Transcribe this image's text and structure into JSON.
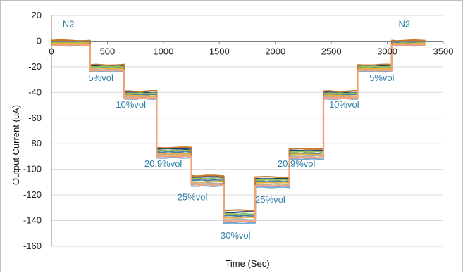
{
  "chart_data": {
    "type": "line",
    "xlabel": "Time (Sec)",
    "ylabel": "Output Current (uA)",
    "xlim": [
      0,
      3500
    ],
    "ylim": [
      -160,
      20
    ],
    "x_ticks": [
      0,
      500,
      1000,
      1500,
      2000,
      2500,
      3000,
      3500
    ],
    "y_ticks": [
      20,
      0,
      -20,
      -40,
      -60,
      -80,
      -100,
      -120,
      -140,
      -160
    ],
    "grid": "horizontal",
    "series_colors": [
      "#6fa8d6",
      "#f4a27a",
      "#b0b0b0",
      "#e5b23a",
      "#4a78b0",
      "#8dbf5a",
      "#1f3f6e",
      "#c7792a"
    ],
    "steps": [
      {
        "start": 0,
        "end": 345,
        "y_mean": -1.5,
        "spread": 2,
        "label": "N2",
        "label_x": 100,
        "label_y": 11
      },
      {
        "start": 345,
        "end": 650,
        "y_mean": -21,
        "spread": 2.5,
        "label": "5%vol",
        "label_x": 330,
        "label_y": -31
      },
      {
        "start": 650,
        "end": 940,
        "y_mean": -42,
        "spread": 3,
        "label": "10%vol",
        "label_x": 575,
        "label_y": -52
      },
      {
        "start": 940,
        "end": 1250,
        "y_mean": -87,
        "spread": 4,
        "label": "20.9%vol",
        "label_x": 830,
        "label_y": -98
      },
      {
        "start": 1250,
        "end": 1540,
        "y_mean": -109,
        "spread": 4,
        "label": "25%vol",
        "label_x": 1125,
        "label_y": -124
      },
      {
        "start": 1540,
        "end": 1820,
        "y_mean": -137,
        "spread": 5,
        "label": "30%vol",
        "label_x": 1510,
        "label_y": -154
      },
      {
        "start": 1820,
        "end": 2125,
        "y_mean": -110,
        "spread": 4,
        "label": "25%vol",
        "label_x": 1820,
        "label_y": -126
      },
      {
        "start": 2125,
        "end": 2430,
        "y_mean": -88,
        "spread": 4,
        "label": "20.9%vol",
        "label_x": 2020,
        "label_y": -98
      },
      {
        "start": 2430,
        "end": 2735,
        "y_mean": -42,
        "spread": 3,
        "label": "10%vol",
        "label_x": 2480,
        "label_y": -52
      },
      {
        "start": 2735,
        "end": 3040,
        "y_mean": -21,
        "spread": 2.5,
        "label": "5%vol",
        "label_x": 2840,
        "label_y": -31
      },
      {
        "start": 3040,
        "end": 3340,
        "y_mean": -1.5,
        "spread": 2,
        "label": "N2",
        "label_x": 3100,
        "label_y": 11
      }
    ]
  }
}
